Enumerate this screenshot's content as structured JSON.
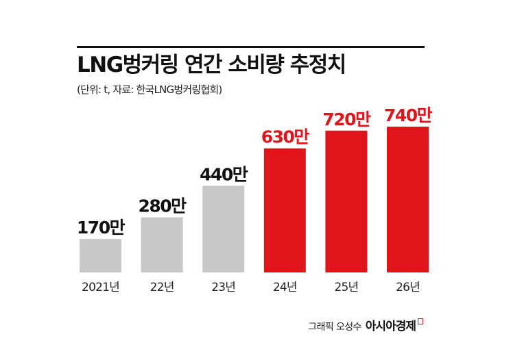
{
  "header": {
    "title": "LNG벙커링 연간 소비량 추정치",
    "subtitle": "(단위: t, 자료: 한국LNG벙커링협회)"
  },
  "credit": {
    "text": "그래픽 오성수",
    "brand": "아시아경제"
  },
  "colors": {
    "actual": "#c8c8c8",
    "forecast": "#e1141b",
    "actual_label": "#111111",
    "forecast_label": "#e1141b"
  },
  "chart_data": {
    "type": "bar",
    "title": "LNG벙커링 연간 소비량 추정치",
    "categories": [
      "2021년",
      "22년",
      "23년",
      "24년",
      "25년",
      "26년"
    ],
    "values": [
      170,
      280,
      440,
      630,
      720,
      740
    ],
    "value_labels": [
      "170만",
      "280만",
      "440만",
      "630만",
      "720만",
      "740만"
    ],
    "highlight": [
      false,
      false,
      false,
      true,
      true,
      true
    ],
    "ylim": [
      0,
      740
    ],
    "grid": false,
    "legend": "none"
  }
}
